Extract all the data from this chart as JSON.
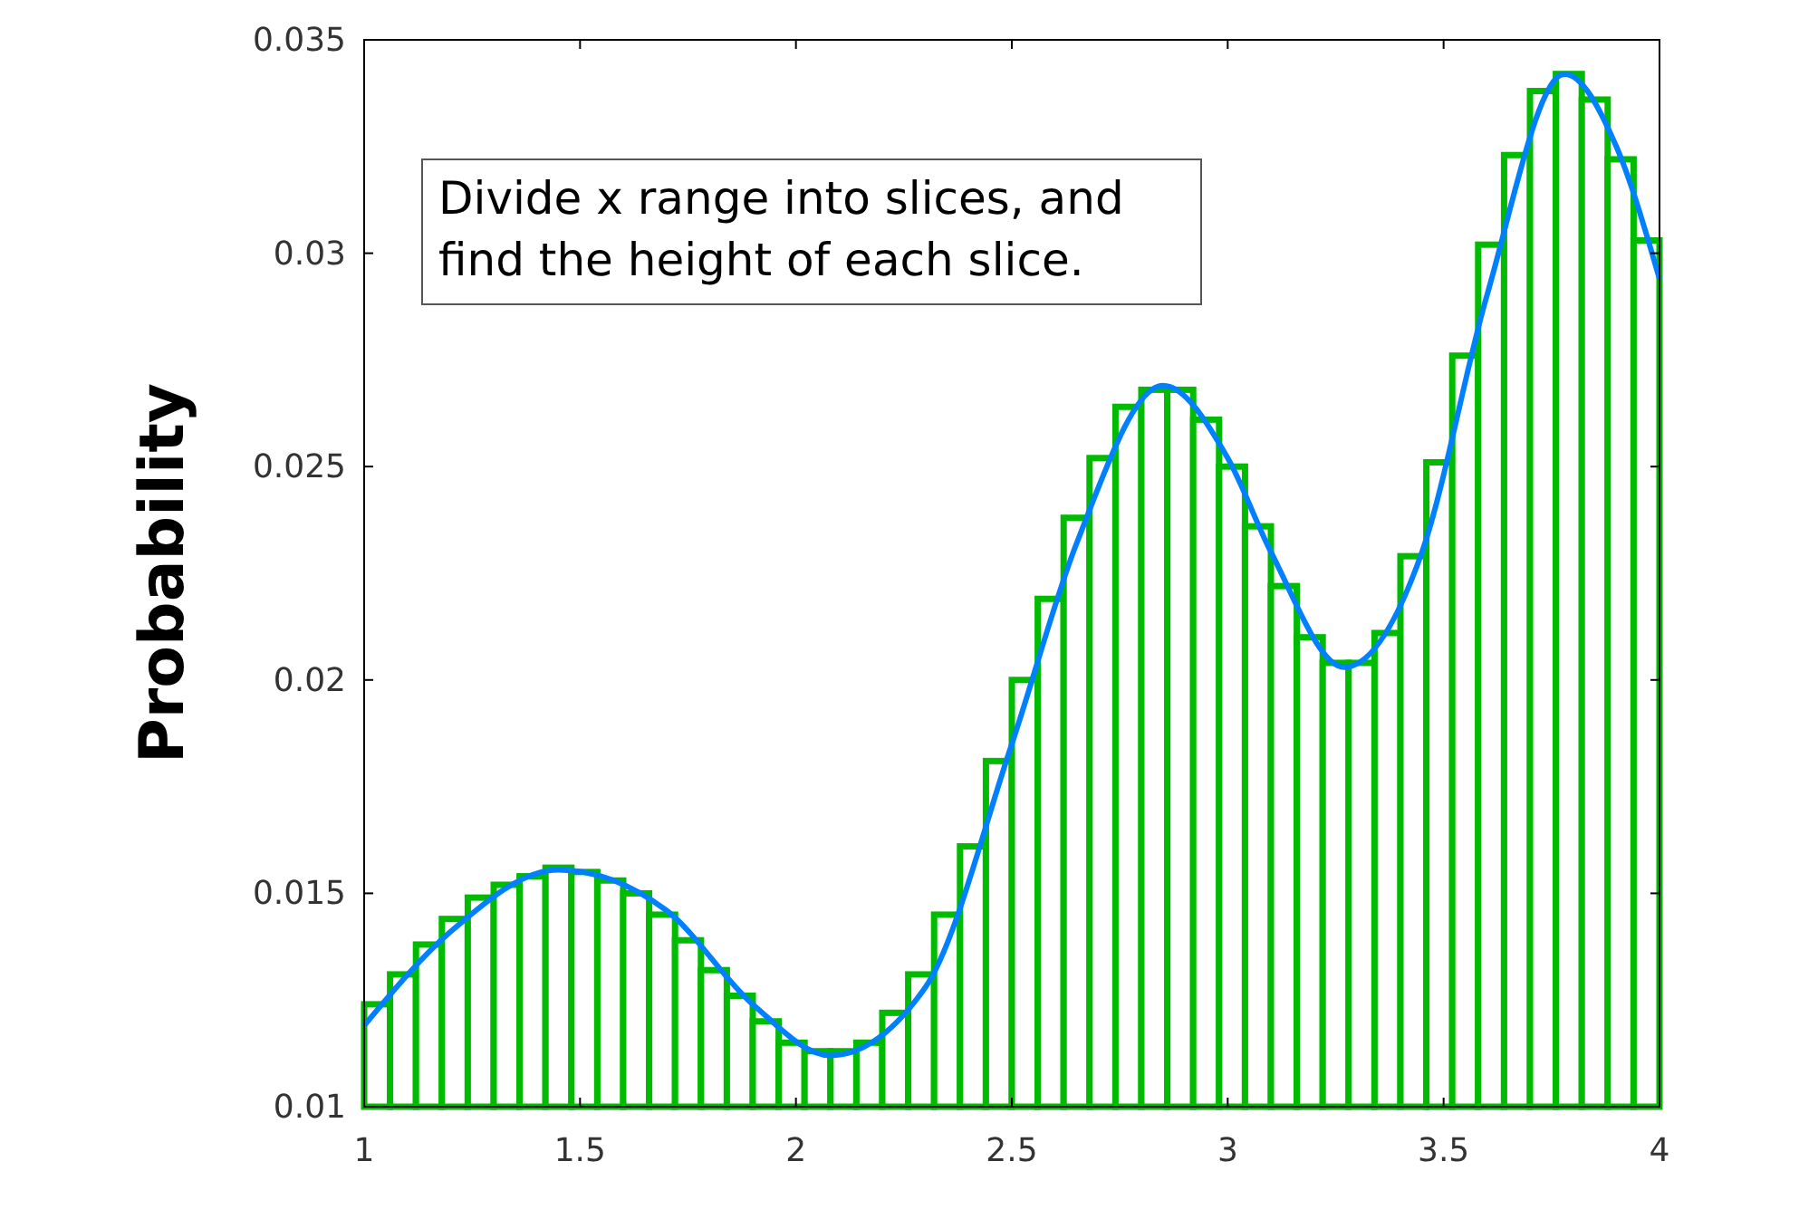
{
  "chart_data": {
    "type": "histogram",
    "ylabel": "Probability",
    "xlim": [
      1,
      4
    ],
    "ylim": [
      0.01,
      0.035
    ],
    "xticks": [
      1,
      1.5,
      2,
      2.5,
      3,
      3.5,
      4
    ],
    "yticks": [
      0.01,
      0.015,
      0.02,
      0.025,
      0.03,
      0.035
    ],
    "grid": false,
    "annotations": [
      "Divide x range into slices, and\nfind the height of each slice."
    ],
    "bins": [
      1,
      1.06,
      1.12,
      1.18,
      1.24,
      1.3,
      1.36,
      1.42,
      1.48,
      1.54,
      1.6,
      1.66,
      1.72,
      1.78,
      1.84,
      1.9,
      1.96,
      2.02,
      2.08,
      2.14,
      2.2,
      2.26,
      2.32,
      2.38,
      2.44,
      2.5,
      2.56,
      2.62,
      2.68,
      2.74,
      2.8,
      2.86,
      2.92,
      2.98,
      3.04,
      3.1,
      3.16,
      3.22,
      3.28,
      3.34,
      3.4,
      3.46,
      3.52,
      3.58,
      3.64,
      3.7,
      3.76,
      3.82,
      3.88,
      3.94,
      4
    ],
    "series": [
      {
        "color": "#00bb00",
        "values": [
          0.0124,
          0.0131,
          0.0138,
          0.0144,
          0.0149,
          0.0152,
          0.0154,
          0.0156,
          0.0155,
          0.0153,
          0.015,
          0.0145,
          0.0139,
          0.0132,
          0.0126,
          0.012,
          0.0115,
          0.0113,
          0.0113,
          0.0115,
          0.0122,
          0.0131,
          0.0145,
          0.0161,
          0.0181,
          0.02,
          0.0219,
          0.0238,
          0.0252,
          0.0264,
          0.0268,
          0.0268,
          0.0261,
          0.025,
          0.0236,
          0.0222,
          0.021,
          0.0204,
          0.0204,
          0.0211,
          0.0229,
          0.0251,
          0.0276,
          0.0302,
          0.0323,
          0.0338,
          0.0342,
          0.0336,
          0.0322,
          0.0303
        ]
      },
      {
        "type": "line",
        "color": "#0080ff",
        "x": [
          1,
          1.2,
          1.45,
          1.7,
          1.9,
          2.08,
          2.3,
          2.5,
          2.65,
          2.85,
          3,
          3.1,
          3.27,
          3.45,
          3.6,
          3.78,
          3.9,
          4
        ],
        "values": [
          0.0119,
          0.0141,
          0.01555,
          0.0146,
          0.0124,
          0.0112,
          0.0128,
          0.0185,
          0.0232,
          0.0269,
          0.0252,
          0.023,
          0.0203,
          0.023,
          0.029,
          0.0342,
          0.0325,
          0.0294
        ]
      }
    ]
  }
}
